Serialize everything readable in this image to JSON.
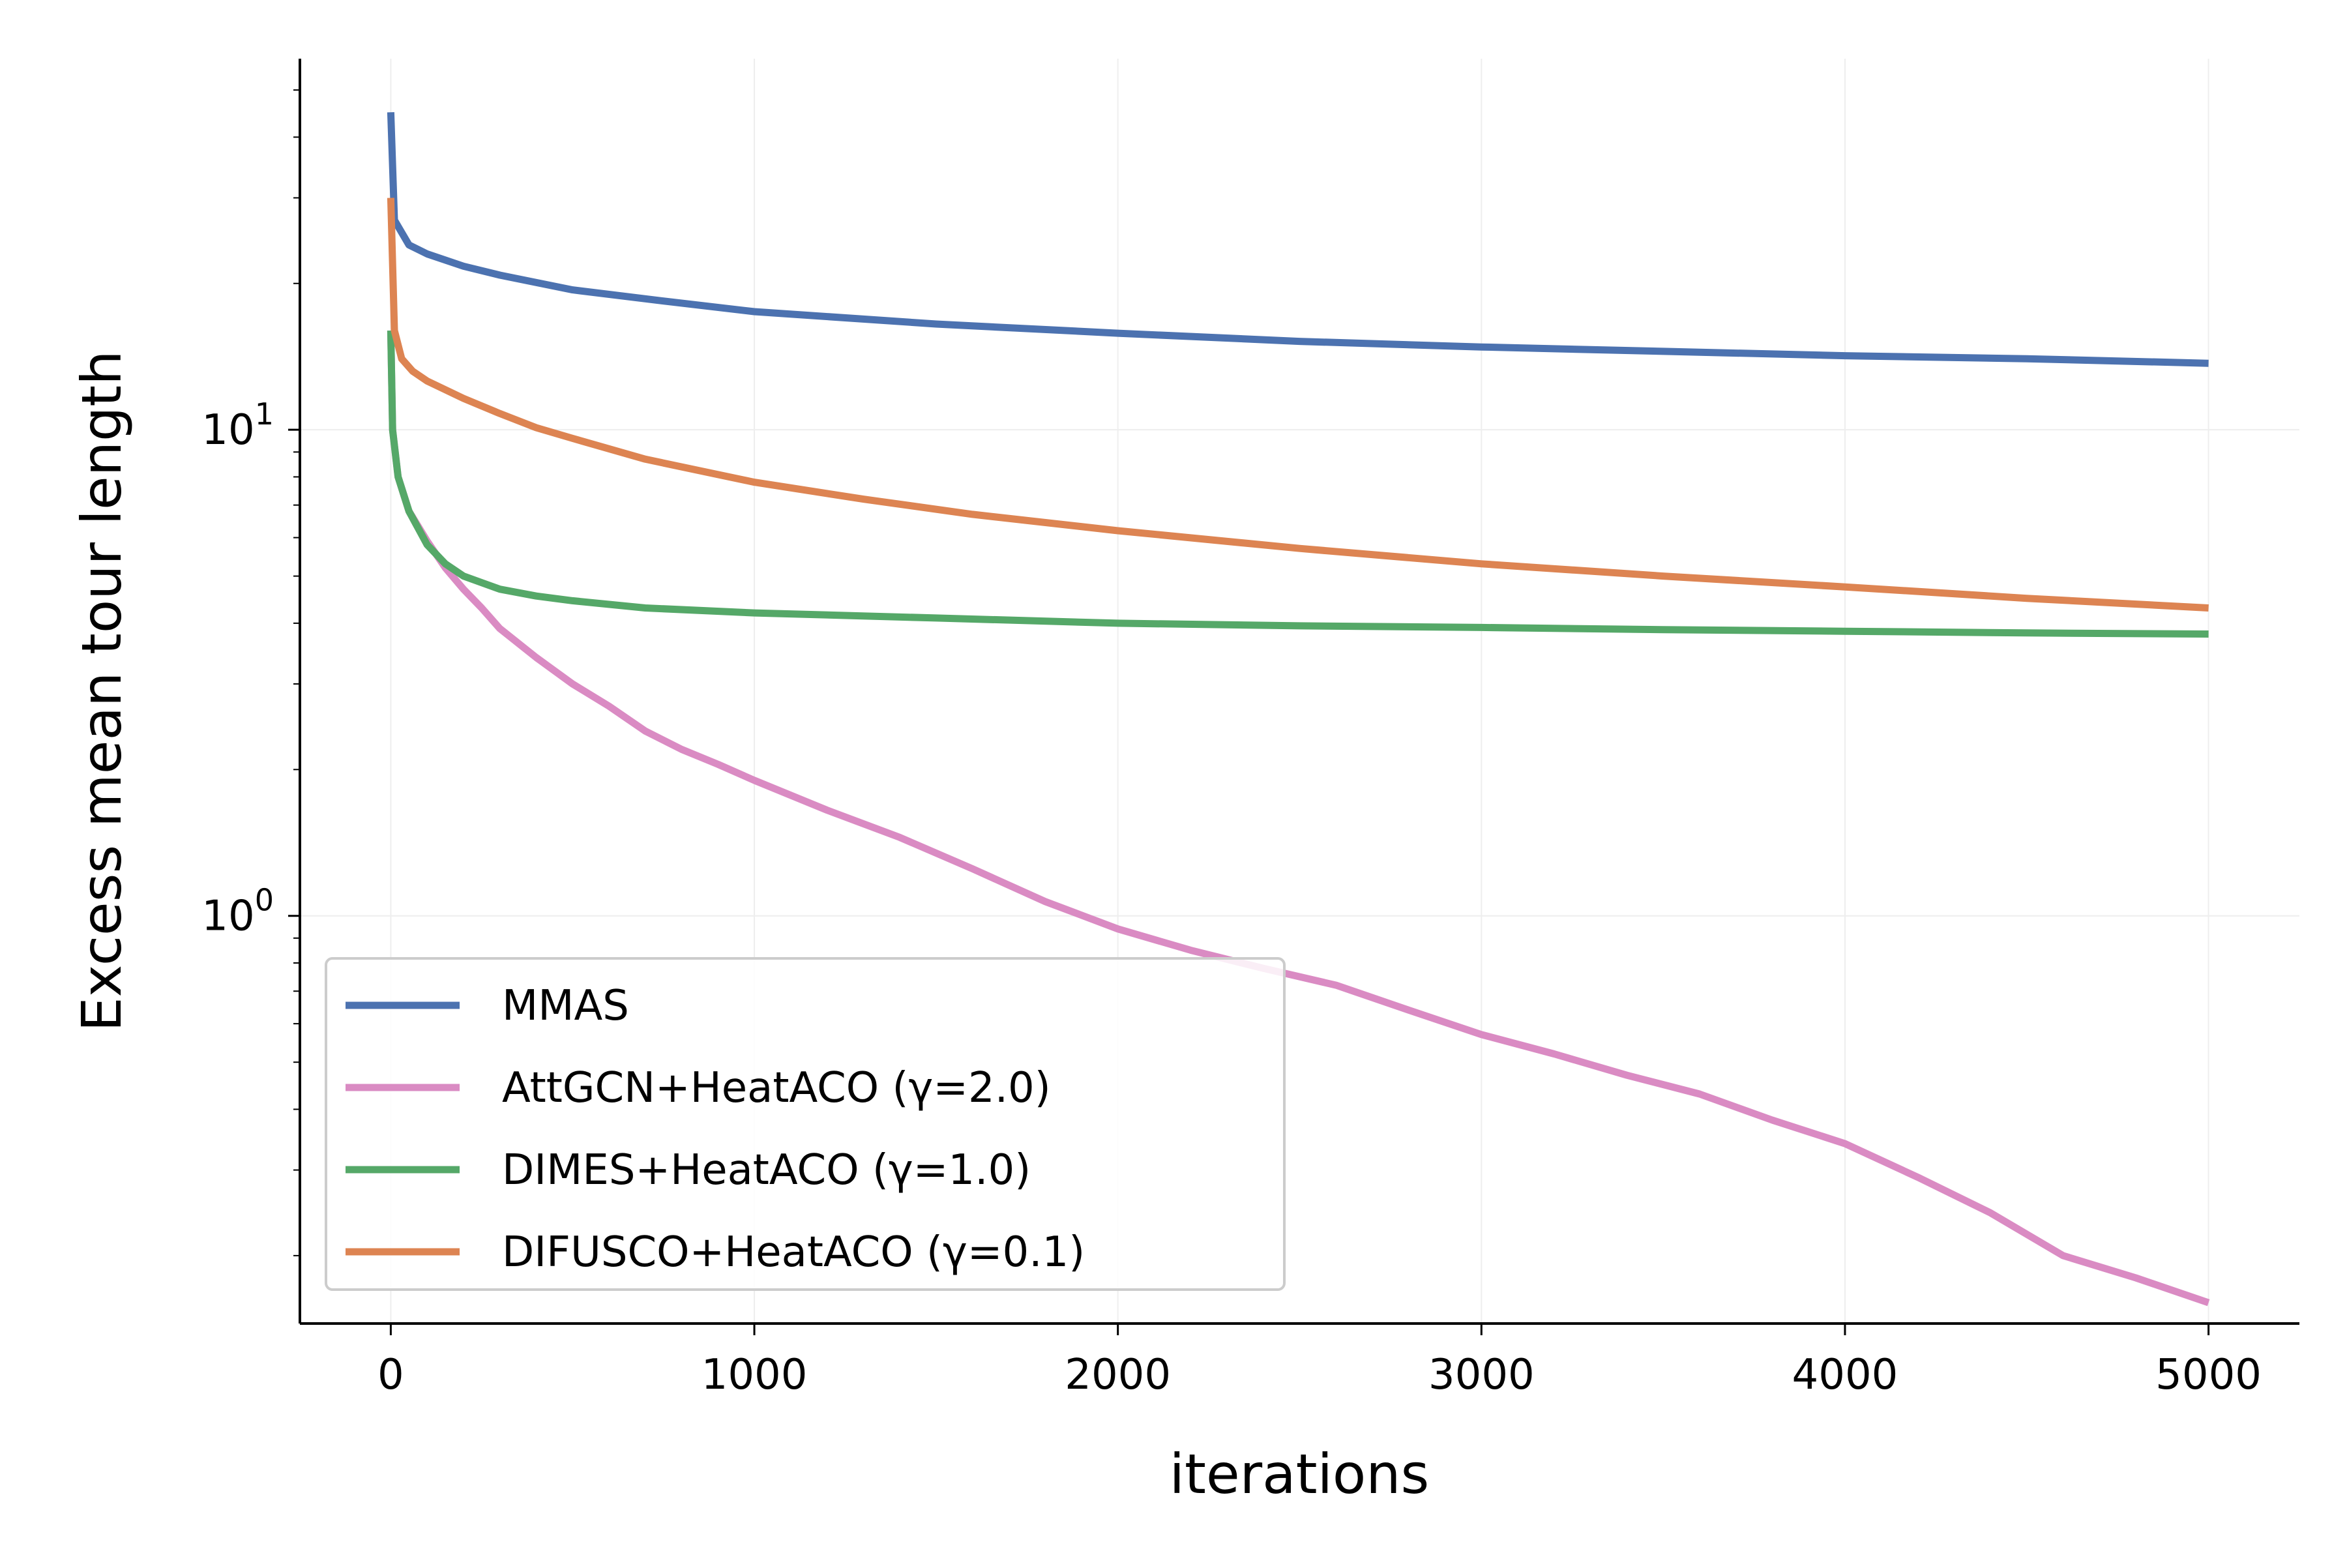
{
  "chart_data": {
    "type": "line",
    "title": "",
    "xlabel": "iterations",
    "ylabel": "Excess mean tour length",
    "xlim": [
      -250,
      5250
    ],
    "ylim": [
      0.145,
      58
    ],
    "yscale": "log",
    "x_ticks": [
      0,
      1000,
      2000,
      3000,
      4000,
      5000
    ],
    "x_tick_labels": [
      "0",
      "1000",
      "2000",
      "3000",
      "4000",
      "5000"
    ],
    "y_major_ticks": [
      1,
      10
    ],
    "y_tick_labels": [
      {
        "base": "10",
        "exp": "0"
      },
      {
        "base": "10",
        "exp": "1"
      }
    ],
    "y_minor_ticks": [
      0.2,
      0.3,
      0.4,
      0.5,
      0.6,
      0.7,
      0.8,
      0.9,
      2,
      3,
      4,
      5,
      6,
      7,
      8,
      9,
      20,
      30,
      40,
      50
    ],
    "grid": true,
    "legend_position": "lower-left",
    "series": [
      {
        "name": "MMAS",
        "color": "#4c72b0",
        "points": [
          [
            0,
            45
          ],
          [
            10,
            27
          ],
          [
            50,
            24
          ],
          [
            100,
            23
          ],
          [
            200,
            21.7
          ],
          [
            300,
            20.8
          ],
          [
            500,
            19.4
          ],
          [
            750,
            18.4
          ],
          [
            1000,
            17.5
          ],
          [
            1500,
            16.5
          ],
          [
            2000,
            15.8
          ],
          [
            2500,
            15.2
          ],
          [
            3000,
            14.8
          ],
          [
            3500,
            14.5
          ],
          [
            4000,
            14.2
          ],
          [
            4500,
            14.0
          ],
          [
            5000,
            13.7
          ]
        ]
      },
      {
        "name": "AttGCN+HeatACO (γ=2.0)",
        "color": "#da8bc3",
        "points": [
          [
            0,
            16
          ],
          [
            5,
            10
          ],
          [
            20,
            8
          ],
          [
            50,
            6.8
          ],
          [
            100,
            5.9
          ],
          [
            150,
            5.2
          ],
          [
            200,
            4.7
          ],
          [
            250,
            4.3
          ],
          [
            300,
            3.9
          ],
          [
            400,
            3.4
          ],
          [
            500,
            3.0
          ],
          [
            600,
            2.7
          ],
          [
            700,
            2.4
          ],
          [
            800,
            2.2
          ],
          [
            900,
            2.05
          ],
          [
            1000,
            1.9
          ],
          [
            1200,
            1.65
          ],
          [
            1400,
            1.45
          ],
          [
            1600,
            1.25
          ],
          [
            1800,
            1.07
          ],
          [
            2000,
            0.94
          ],
          [
            2200,
            0.85
          ],
          [
            2400,
            0.78
          ],
          [
            2600,
            0.72
          ],
          [
            2800,
            0.64
          ],
          [
            3000,
            0.57
          ],
          [
            3200,
            0.52
          ],
          [
            3400,
            0.47
          ],
          [
            3600,
            0.43
          ],
          [
            3800,
            0.38
          ],
          [
            4000,
            0.34
          ],
          [
            4200,
            0.29
          ],
          [
            4400,
            0.245
          ],
          [
            4600,
            0.2
          ],
          [
            4800,
            0.18
          ],
          [
            5000,
            0.16
          ]
        ]
      },
      {
        "name": "DIMES+HeatACO (γ=1.0)",
        "color": "#55a868",
        "points": [
          [
            0,
            16
          ],
          [
            5,
            10
          ],
          [
            20,
            8
          ],
          [
            50,
            6.8
          ],
          [
            100,
            5.8
          ],
          [
            150,
            5.3
          ],
          [
            200,
            5.0
          ],
          [
            300,
            4.7
          ],
          [
            400,
            4.55
          ],
          [
            500,
            4.45
          ],
          [
            700,
            4.3
          ],
          [
            1000,
            4.2
          ],
          [
            1500,
            4.1
          ],
          [
            2000,
            4.0
          ],
          [
            2500,
            3.95
          ],
          [
            3000,
            3.92
          ],
          [
            3500,
            3.88
          ],
          [
            4000,
            3.85
          ],
          [
            4500,
            3.82
          ],
          [
            5000,
            3.8
          ]
        ]
      },
      {
        "name": "DIFUSCO+HeatACO (γ=0.1)",
        "color": "#dd8452",
        "points": [
          [
            0,
            30
          ],
          [
            10,
            16
          ],
          [
            30,
            14
          ],
          [
            60,
            13.2
          ],
          [
            100,
            12.6
          ],
          [
            200,
            11.6
          ],
          [
            300,
            10.8
          ],
          [
            400,
            10.1
          ],
          [
            500,
            9.6
          ],
          [
            700,
            8.7
          ],
          [
            1000,
            7.8
          ],
          [
            1300,
            7.2
          ],
          [
            1600,
            6.7
          ],
          [
            2000,
            6.2
          ],
          [
            2500,
            5.7
          ],
          [
            3000,
            5.3
          ],
          [
            3500,
            5.0
          ],
          [
            4000,
            4.75
          ],
          [
            4500,
            4.5
          ],
          [
            5000,
            4.3
          ]
        ]
      }
    ]
  }
}
